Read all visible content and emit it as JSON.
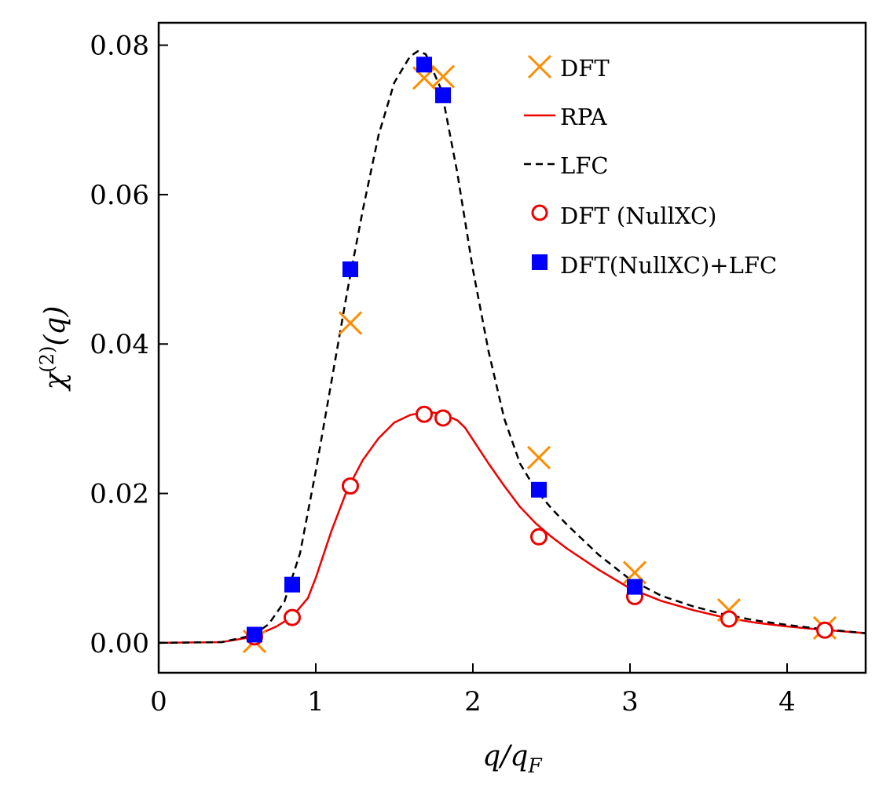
{
  "chart_data": {
    "type": "line",
    "xlabel": "q/q_F",
    "ylabel": "χ^(2)(q)",
    "xlim": [
      0,
      4.5
    ],
    "ylim": [
      -0.004,
      0.083
    ],
    "xticks": [
      0,
      1,
      2,
      3,
      4
    ],
    "xtick_labels": [
      "0",
      "1",
      "2",
      "3",
      "4"
    ],
    "yticks": [
      0.0,
      0.02,
      0.04,
      0.06,
      0.08
    ],
    "ytick_labels": [
      "0.00",
      "0.02",
      "0.04",
      "0.06",
      "0.08"
    ],
    "legend_position": "top-right",
    "colors": {
      "dft": "#ff8c00",
      "rpa": "#ee0000",
      "lfc": "#000000",
      "nullxc": "#ee0000",
      "nullxc_lfc": "#0000ff"
    },
    "series": [
      {
        "key": "dft",
        "name": "DFT",
        "style": "x-marker",
        "x": [
          0.61,
          1.22,
          1.69,
          1.81,
          2.42,
          3.03,
          3.63,
          4.24
        ],
        "y": [
          0.0002,
          0.0428,
          0.0756,
          0.0758,
          0.0248,
          0.0094,
          0.0044,
          0.002
        ]
      },
      {
        "key": "rpa",
        "name": "RPA",
        "style": "solid-line",
        "x": [
          0,
          0.4,
          0.6,
          0.75,
          0.85,
          0.95,
          1.0,
          1.1,
          1.2,
          1.3,
          1.4,
          1.5,
          1.6,
          1.7,
          1.8,
          1.9,
          1.95,
          2.0,
          2.1,
          2.2,
          2.3,
          2.4,
          2.5,
          2.6,
          2.8,
          3.0,
          3.2,
          3.4,
          3.6,
          3.8,
          4.0,
          4.2,
          4.5
        ],
        "y": [
          0,
          0.0001,
          0.0008,
          0.0022,
          0.0035,
          0.006,
          0.0087,
          0.015,
          0.0205,
          0.0245,
          0.0274,
          0.0295,
          0.0305,
          0.0309,
          0.0307,
          0.0298,
          0.0288,
          0.0272,
          0.024,
          0.021,
          0.0182,
          0.016,
          0.0142,
          0.0126,
          0.0098,
          0.0073,
          0.0056,
          0.0044,
          0.0034,
          0.0027,
          0.0022,
          0.0018,
          0.0013
        ]
      },
      {
        "key": "lfc",
        "name": "LFC",
        "style": "dashed-line",
        "x": [
          0,
          0.4,
          0.6,
          0.7,
          0.8,
          0.9,
          1.0,
          1.1,
          1.2,
          1.3,
          1.4,
          1.5,
          1.6,
          1.65,
          1.7,
          1.8,
          1.9,
          2.0,
          2.1,
          2.2,
          2.3,
          2.4,
          2.5,
          2.6,
          2.8,
          3.0,
          3.2,
          3.4,
          3.6,
          3.8,
          4.0,
          4.2,
          4.5
        ],
        "y": [
          0,
          0.0001,
          0.001,
          0.0025,
          0.0055,
          0.012,
          0.023,
          0.035,
          0.047,
          0.058,
          0.068,
          0.075,
          0.0785,
          0.0792,
          0.0788,
          0.074,
          0.063,
          0.05,
          0.039,
          0.03,
          0.024,
          0.0205,
          0.018,
          0.0158,
          0.0118,
          0.0085,
          0.0063,
          0.0049,
          0.0038,
          0.003,
          0.0024,
          0.0019,
          0.0013
        ]
      },
      {
        "key": "nullxc",
        "name": "DFT (NullXC)",
        "style": "open-circle",
        "x": [
          0.61,
          0.85,
          1.22,
          1.69,
          1.81,
          2.42,
          3.03,
          3.63,
          4.24
        ],
        "y": [
          0.0008,
          0.0034,
          0.021,
          0.0306,
          0.0301,
          0.0142,
          0.0062,
          0.0032,
          0.0017
        ]
      },
      {
        "key": "nullxc_lfc",
        "name": "DFT(NullXC)+LFC",
        "style": "filled-square",
        "x": [
          0.61,
          0.85,
          1.22,
          1.69,
          1.81,
          2.42,
          3.03
        ],
        "y": [
          0.0011,
          0.0078,
          0.05,
          0.0774,
          0.0733,
          0.0205,
          0.0075
        ]
      }
    ]
  }
}
